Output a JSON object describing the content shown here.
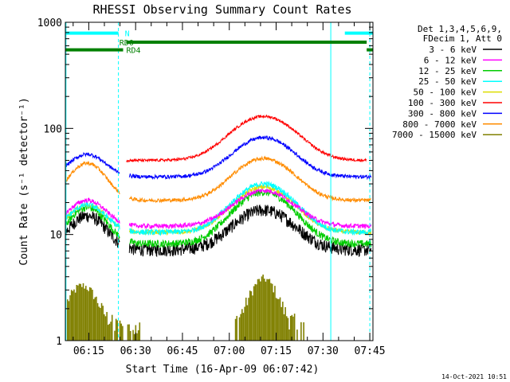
{
  "chart_data": {
    "type": "line",
    "title": "RHESSI Observing Summary Count Rates",
    "xlabel": "Start Time (16-Apr-09 06:07:42)",
    "ylabel": "Count Rate (s⁻¹ detector⁻¹)",
    "y_scale": "log",
    "ylim": [
      1,
      1000
    ],
    "xlim_minutes": [
      7.5,
      106
    ],
    "x_ticks": [
      {
        "m": 15,
        "label": "06:15"
      },
      {
        "m": 30,
        "label": "06:30"
      },
      {
        "m": 45,
        "label": "06:45"
      },
      {
        "m": 60,
        "label": "07:00"
      },
      {
        "m": 75,
        "label": "07:15"
      },
      {
        "m": 90,
        "label": "07:30"
      },
      {
        "m": 105,
        "label": "07:45"
      }
    ],
    "y_ticks": [
      {
        "v": 1,
        "label": "1"
      },
      {
        "v": 10,
        "label": "10"
      },
      {
        "v": 100,
        "label": "100"
      },
      {
        "v": 1000,
        "label": "1000"
      }
    ],
    "legend": {
      "placement": "right",
      "header": [
        "Det 1,3,4,5,6,9,",
        "FDecim 1, Att 0"
      ]
    },
    "series": [
      {
        "name": "3 - 6 keV",
        "color": "#000000",
        "base": 7.2,
        "peak1": 15,
        "peak2": 17,
        "jitter": 0.14
      },
      {
        "name": "6 - 12 keV",
        "color": "#ff00ff",
        "base": 12,
        "peak1": 21,
        "peak2": 26,
        "jitter": 0.05
      },
      {
        "name": "12 - 25 keV",
        "color": "#00cc00",
        "base": 8.2,
        "peak1": 18,
        "peak2": 25,
        "jitter": 0.08
      },
      {
        "name": "25 - 50 keV",
        "color": "#00ffff",
        "base": 10.5,
        "peak1": 19,
        "peak2": 30,
        "jitter": 0.06
      },
      {
        "name": "50 - 100 keV",
        "color": "#dddd00",
        "base": 10.5,
        "peak1": 19,
        "peak2": 28,
        "jitter": 0.05
      },
      {
        "name": "100 - 300 keV",
        "color": "#ff0000",
        "base": 50,
        "peak1": 0,
        "peak2": 130,
        "jitter": 0.03
      },
      {
        "name": "300 - 800 keV",
        "color": "#0000ff",
        "base": 35,
        "peak1": 57,
        "peak2": 82,
        "jitter": 0.04
      },
      {
        "name": "800 - 7000 keV",
        "color": "#ff8c00",
        "base": 21,
        "peak1": 47,
        "peak2": 52,
        "jitter": 0.04
      },
      {
        "name": "7000 - 15000 keV",
        "color": "#808000",
        "base": 0,
        "peak1": 3,
        "peak2": 3.5,
        "jitter": 0.0
      }
    ],
    "flags": [
      {
        "label": "N",
        "color": "#00ffff",
        "y": 790,
        "segments": [
          [
            7.5,
            24.5
          ],
          [
            97,
            106
          ]
        ]
      },
      {
        "label": "RD0",
        "color": "#008000",
        "y": 650,
        "segments": [
          [
            27,
            104
          ]
        ]
      },
      {
        "label": "RD4",
        "color": "#008000",
        "y": 550,
        "segments": [
          [
            7.5,
            26
          ],
          [
            104,
            106
          ]
        ]
      }
    ],
    "markers": [
      {
        "m": 7.7,
        "style": "solid"
      },
      {
        "m": 24.5,
        "style": "dashed"
      },
      {
        "m": 92.5,
        "style": "solid"
      },
      {
        "m": 105,
        "style": "dashed"
      }
    ]
  },
  "footer": {
    "timestamp": "14-Oct-2021 10:51"
  },
  "colors": {
    "axes": "#000000",
    "background": "#ffffff",
    "marker": "#00ffff"
  }
}
